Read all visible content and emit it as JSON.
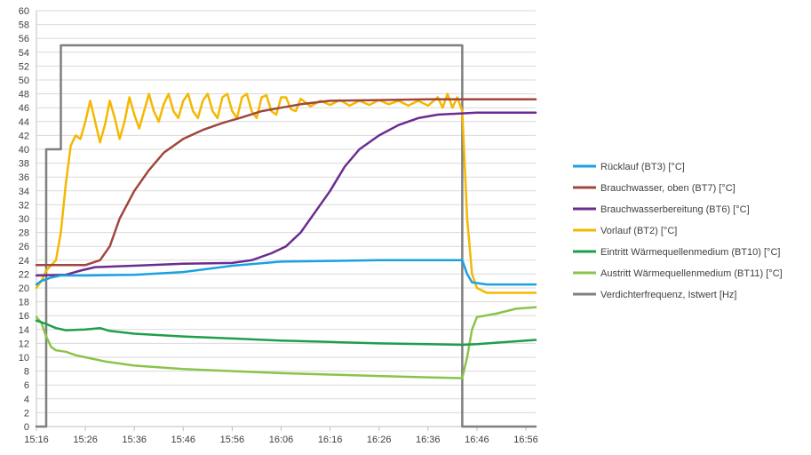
{
  "chart_data": {
    "type": "line",
    "title": "",
    "xlabel": "",
    "ylabel": "",
    "ylim": [
      0,
      60
    ],
    "ytick_step": 2,
    "xlim": [
      "15:16",
      "16:58"
    ],
    "x_ticks": [
      "15:16",
      "15:26",
      "15:36",
      "15:46",
      "15:56",
      "16:06",
      "16:16",
      "16:26",
      "16:36",
      "16:46",
      "16:56"
    ],
    "grid": "horizontal",
    "legend_position": "right",
    "series": [
      {
        "name": "Rücklauf (BT3) [°C]",
        "color": "#1ba1e2",
        "points": [
          [
            "15:16",
            20.5
          ],
          [
            "15:17",
            21.0
          ],
          [
            "15:19",
            21.5
          ],
          [
            "15:21",
            21.8
          ],
          [
            "15:26",
            21.8
          ],
          [
            "15:36",
            21.9
          ],
          [
            "15:46",
            22.3
          ],
          [
            "15:56",
            23.2
          ],
          [
            "16:06",
            23.8
          ],
          [
            "16:16",
            23.9
          ],
          [
            "16:26",
            24.0
          ],
          [
            "16:36",
            24.0
          ],
          [
            "16:43",
            24.0
          ],
          [
            "16:44",
            22.0
          ],
          [
            "16:45",
            20.8
          ],
          [
            "16:48",
            20.5
          ],
          [
            "16:58",
            20.5
          ]
        ]
      },
      {
        "name": "Brauchwasser, oben (BT7) [°C]",
        "color": "#a0473d",
        "points": [
          [
            "15:16",
            23.3
          ],
          [
            "15:26",
            23.3
          ],
          [
            "15:29",
            24.0
          ],
          [
            "15:31",
            26.0
          ],
          [
            "15:33",
            30.0
          ],
          [
            "15:36",
            34.0
          ],
          [
            "15:39",
            37.0
          ],
          [
            "15:42",
            39.5
          ],
          [
            "15:46",
            41.5
          ],
          [
            "15:50",
            42.8
          ],
          [
            "15:54",
            43.8
          ],
          [
            "15:58",
            44.6
          ],
          [
            "16:02",
            45.5
          ],
          [
            "16:06",
            46.0
          ],
          [
            "16:10",
            46.5
          ],
          [
            "16:16",
            47.0
          ],
          [
            "16:26",
            47.1
          ],
          [
            "16:36",
            47.2
          ],
          [
            "16:46",
            47.2
          ],
          [
            "16:58",
            47.2
          ]
        ]
      },
      {
        "name": "Brauchwasserbereitung (BT6) [°C]",
        "color": "#6a2c91",
        "points": [
          [
            "15:16",
            21.8
          ],
          [
            "15:22",
            21.9
          ],
          [
            "15:25",
            22.5
          ],
          [
            "15:28",
            23.0
          ],
          [
            "15:36",
            23.2
          ],
          [
            "15:46",
            23.5
          ],
          [
            "15:56",
            23.6
          ],
          [
            "16:00",
            24.0
          ],
          [
            "16:04",
            25.0
          ],
          [
            "16:07",
            26.0
          ],
          [
            "16:10",
            28.0
          ],
          [
            "16:13",
            31.0
          ],
          [
            "16:16",
            34.0
          ],
          [
            "16:19",
            37.5
          ],
          [
            "16:22",
            40.0
          ],
          [
            "16:26",
            42.0
          ],
          [
            "16:30",
            43.5
          ],
          [
            "16:34",
            44.5
          ],
          [
            "16:38",
            45.0
          ],
          [
            "16:46",
            45.3
          ],
          [
            "16:58",
            45.3
          ]
        ]
      },
      {
        "name": "Vorlauf (BT2) [°C]",
        "color": "#f5b800",
        "points": [
          [
            "15:16",
            20.0
          ],
          [
            "15:17",
            21.0
          ],
          [
            "15:18",
            22.5
          ],
          [
            "15:20",
            24.0
          ],
          [
            "15:21",
            28.0
          ],
          [
            "15:22",
            35.0
          ],
          [
            "15:23",
            40.5
          ],
          [
            "15:24",
            42.0
          ],
          [
            "15:25",
            41.5
          ],
          [
            "15:26",
            44.0
          ],
          [
            "15:27",
            47.0
          ],
          [
            "15:28",
            44.0
          ],
          [
            "15:29",
            41.0
          ],
          [
            "15:30",
            43.5
          ],
          [
            "15:31",
            47.0
          ],
          [
            "15:32",
            44.5
          ],
          [
            "15:33",
            41.5
          ],
          [
            "15:34",
            44.0
          ],
          [
            "15:35",
            47.5
          ],
          [
            "15:36",
            45.0
          ],
          [
            "15:37",
            43.0
          ],
          [
            "15:38",
            45.5
          ],
          [
            "15:39",
            48.0
          ],
          [
            "15:40",
            45.5
          ],
          [
            "15:41",
            44.0
          ],
          [
            "15:42",
            46.5
          ],
          [
            "15:43",
            48.0
          ],
          [
            "15:44",
            45.5
          ],
          [
            "15:45",
            44.5
          ],
          [
            "15:46",
            47.0
          ],
          [
            "15:47",
            48.0
          ],
          [
            "15:48",
            45.5
          ],
          [
            "15:49",
            44.5
          ],
          [
            "15:50",
            47.0
          ],
          [
            "15:51",
            48.0
          ],
          [
            "15:52",
            45.5
          ],
          [
            "15:53",
            44.5
          ],
          [
            "15:54",
            47.5
          ],
          [
            "15:55",
            48.0
          ],
          [
            "15:56",
            45.5
          ],
          [
            "15:57",
            44.5
          ],
          [
            "15:58",
            47.5
          ],
          [
            "15:59",
            48.0
          ],
          [
            "16:00",
            45.5
          ],
          [
            "16:01",
            44.5
          ],
          [
            "16:02",
            47.5
          ],
          [
            "16:03",
            47.8
          ],
          [
            "16:04",
            45.5
          ],
          [
            "16:05",
            45.0
          ],
          [
            "16:06",
            47.5
          ],
          [
            "16:07",
            47.5
          ],
          [
            "16:08",
            45.8
          ],
          [
            "16:09",
            45.5
          ],
          [
            "16:10",
            47.3
          ],
          [
            "16:12",
            46.2
          ],
          [
            "16:14",
            47.0
          ],
          [
            "16:16",
            46.4
          ],
          [
            "16:18",
            47.1
          ],
          [
            "16:20",
            46.3
          ],
          [
            "16:22",
            47.0
          ],
          [
            "16:24",
            46.4
          ],
          [
            "16:26",
            47.1
          ],
          [
            "16:28",
            46.5
          ],
          [
            "16:30",
            47.0
          ],
          [
            "16:32",
            46.3
          ],
          [
            "16:34",
            47.0
          ],
          [
            "16:36",
            46.3
          ],
          [
            "16:38",
            47.5
          ],
          [
            "16:39",
            46.0
          ],
          [
            "16:40",
            48.0
          ],
          [
            "16:41",
            46.0
          ],
          [
            "16:42",
            47.5
          ],
          [
            "16:43",
            45.5
          ],
          [
            "16:44",
            30.0
          ],
          [
            "16:45",
            22.0
          ],
          [
            "16:46",
            20.0
          ],
          [
            "16:48",
            19.3
          ],
          [
            "16:58",
            19.3
          ]
        ]
      },
      {
        "name": "Eintritt Wärmequellenmedium (BT10) [°C]",
        "color": "#1e9e4a",
        "points": [
          [
            "15:16",
            15.3
          ],
          [
            "15:18",
            14.8
          ],
          [
            "15:20",
            14.2
          ],
          [
            "15:22",
            13.9
          ],
          [
            "15:26",
            14.0
          ],
          [
            "15:29",
            14.2
          ],
          [
            "15:31",
            13.8
          ],
          [
            "15:36",
            13.4
          ],
          [
            "15:46",
            13.0
          ],
          [
            "15:56",
            12.7
          ],
          [
            "16:06",
            12.4
          ],
          [
            "16:16",
            12.2
          ],
          [
            "16:26",
            12.0
          ],
          [
            "16:36",
            11.9
          ],
          [
            "16:43",
            11.8
          ],
          [
            "16:46",
            11.9
          ],
          [
            "16:50",
            12.1
          ],
          [
            "16:58",
            12.5
          ]
        ]
      },
      {
        "name": "Austritt Wärmequellenmedium (BT11) [°C]",
        "color": "#8bc34a",
        "points": [
          [
            "15:16",
            15.8
          ],
          [
            "15:17",
            15.0
          ],
          [
            "15:18",
            13.0
          ],
          [
            "15:19",
            11.5
          ],
          [
            "15:20",
            11.0
          ],
          [
            "15:22",
            10.8
          ],
          [
            "15:24",
            10.3
          ],
          [
            "15:26",
            10.0
          ],
          [
            "15:30",
            9.4
          ],
          [
            "15:36",
            8.8
          ],
          [
            "15:46",
            8.3
          ],
          [
            "15:56",
            8.0
          ],
          [
            "16:06",
            7.7
          ],
          [
            "16:16",
            7.5
          ],
          [
            "16:26",
            7.3
          ],
          [
            "16:36",
            7.1
          ],
          [
            "16:42",
            7.0
          ],
          [
            "16:43",
            7.0
          ],
          [
            "16:44",
            10.0
          ],
          [
            "16:45",
            14.0
          ],
          [
            "16:46",
            15.8
          ],
          [
            "16:50",
            16.3
          ],
          [
            "16:54",
            17.0
          ],
          [
            "16:58",
            17.2
          ]
        ]
      },
      {
        "name": "Verdichterfrequenz, Istwert [Hz]",
        "color": "#7f7f7f",
        "points": [
          [
            "15:16",
            0
          ],
          [
            "15:18",
            0
          ],
          [
            "15:18",
            40
          ],
          [
            "15:21",
            40
          ],
          [
            "15:21",
            55
          ],
          [
            "16:43",
            55
          ],
          [
            "16:43",
            0
          ],
          [
            "16:58",
            0
          ]
        ]
      }
    ]
  }
}
